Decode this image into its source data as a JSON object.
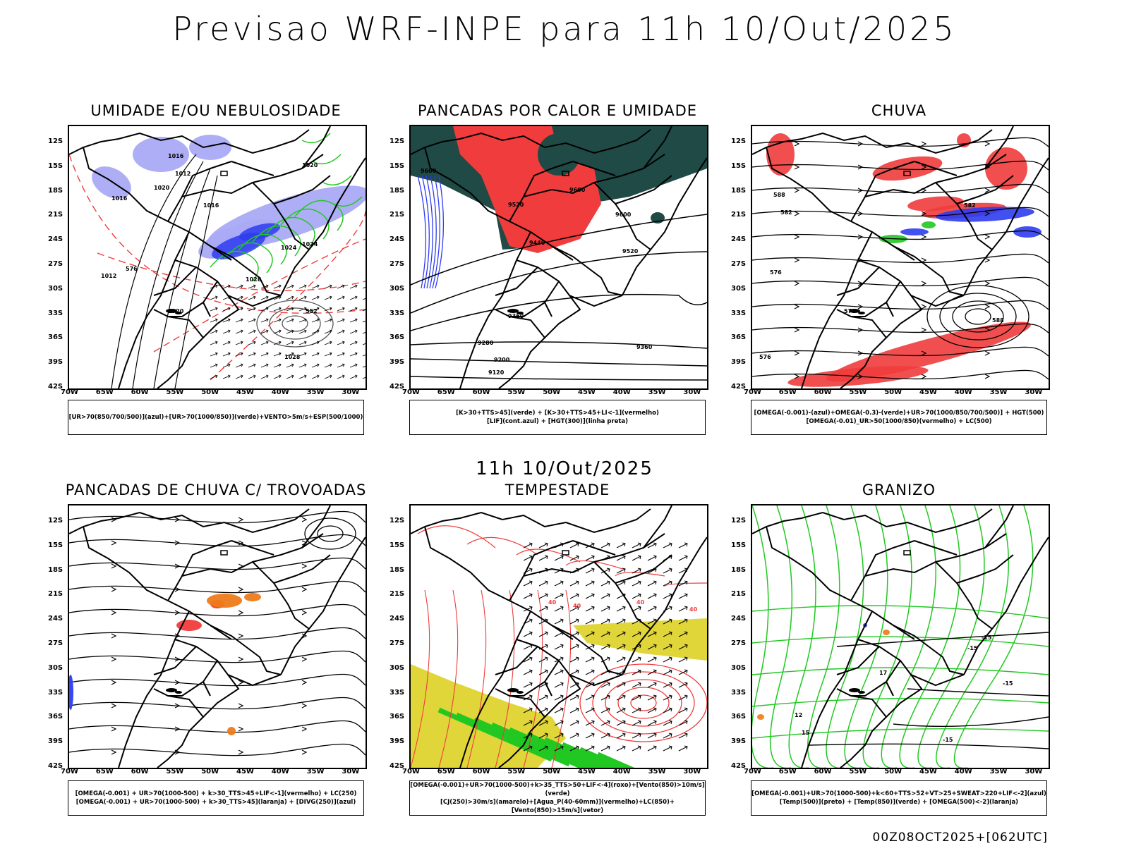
{
  "header": {
    "title": "Previsao WRF-INPE  para 11h 10/Out/2025",
    "subtitle": "11h 10/Out/2025",
    "footer": "00Z08OCT2025+[062UTC]"
  },
  "axes": {
    "lat_labels": [
      "12S",
      "15S",
      "18S",
      "21S",
      "24S",
      "27S",
      "30S",
      "33S",
      "36S",
      "39S",
      "42S"
    ],
    "lon_labels": [
      "70W",
      "65W",
      "60W",
      "55W",
      "50W",
      "45W",
      "40W",
      "35W",
      "30W"
    ]
  },
  "panels": [
    {
      "id": "umidade",
      "title": "UMIDADE E/OU NEBULOSIDADE",
      "legend": [
        "[UR>70(850/700/500)](azul)+[UR>70(1000/850)](verde)+VENTO>5m/s+ESP(500/1000)"
      ]
    },
    {
      "id": "pancadas-calor",
      "title": "PANCADAS POR CALOR E UMIDADE",
      "legend": [
        "[K>30+TTS>45](verde) + [K>30+TTS>45+LI<-1](vermelho)",
        "[LIF](cont.azul) + [HGT(300)](linha preta)"
      ]
    },
    {
      "id": "chuva",
      "title": "CHUVA",
      "legend": [
        "[OMEGA(-0.001)-(azul)+OMEGA(-0.3)-(verde)+UR>70(1000/850/700/500)] + HGT(500)",
        "[OMEGA(-0.01)_UR>50(1000/850)(vermelho) + LC(500)"
      ]
    },
    {
      "id": "trovoadas",
      "title": "PANCADAS DE CHUVA C/ TROVOADAS",
      "legend": [
        "[OMEGA(-0.001) + UR>70(1000-500) + k>30_TTS>45+LIF<-1](vermelho) + LC(250)",
        "[OMEGA(-0.001) + UR>70(1000-500) + k>30_TTS>45](laranja) + [DIVG(250)](azul)"
      ]
    },
    {
      "id": "tempestade",
      "title": "TEMPESTADE",
      "legend": [
        "[OMEGA(-0.001)+UR>70(1000-500)+k>35_TTS>50+LIF<-4](roxo)+[Vento(850)>10m/s](verde)",
        "[CJ(250)>30m/s](amarelo)+[Agua_P(40-60mm)](vermelho)+LC(850)+[Vento(850)>15m/s](vetor)"
      ]
    },
    {
      "id": "granizo",
      "title": "GRANIZO",
      "legend": [
        "[OMEGA(-0.001)+UR>70(1000-500)+k<60+TTS>52+VT>25+SWEAT>220+LIF<-2](azul)",
        "[Temp(500)](preto) + [Temp(850)](verde) + [OMEGA(500)<-2](laranja)"
      ]
    }
  ],
  "contour_labels": {
    "umidade": [
      "1016",
      "1012",
      "1020",
      "1016",
      "1024",
      "1028",
      "1020",
      "576",
      "552",
      "1028",
      "1024",
      "1016",
      "1012",
      "1020"
    ],
    "pancadas": [
      "9600",
      "9520",
      "9440",
      "9360",
      "9280",
      "9200",
      "9120",
      "9600",
      "9520",
      "9360",
      "9600"
    ],
    "chuva": [
      "588",
      "582",
      "576",
      "570",
      "576",
      "582",
      "588"
    ],
    "tempestade": [
      "40",
      "40",
      "40",
      "40"
    ],
    "granizo": [
      "-15",
      "-15",
      "-15",
      "12",
      "15",
      "-15",
      "17"
    ]
  },
  "colors": {
    "blue_light": "#aaaaf5",
    "blue": "#2e3cf0",
    "green": "#22c822",
    "red": "#f03c3c",
    "dark_teal": "#1f4a46",
    "yellow": "#e0d63a",
    "orange": "#ee7a1a",
    "black": "#000000"
  }
}
